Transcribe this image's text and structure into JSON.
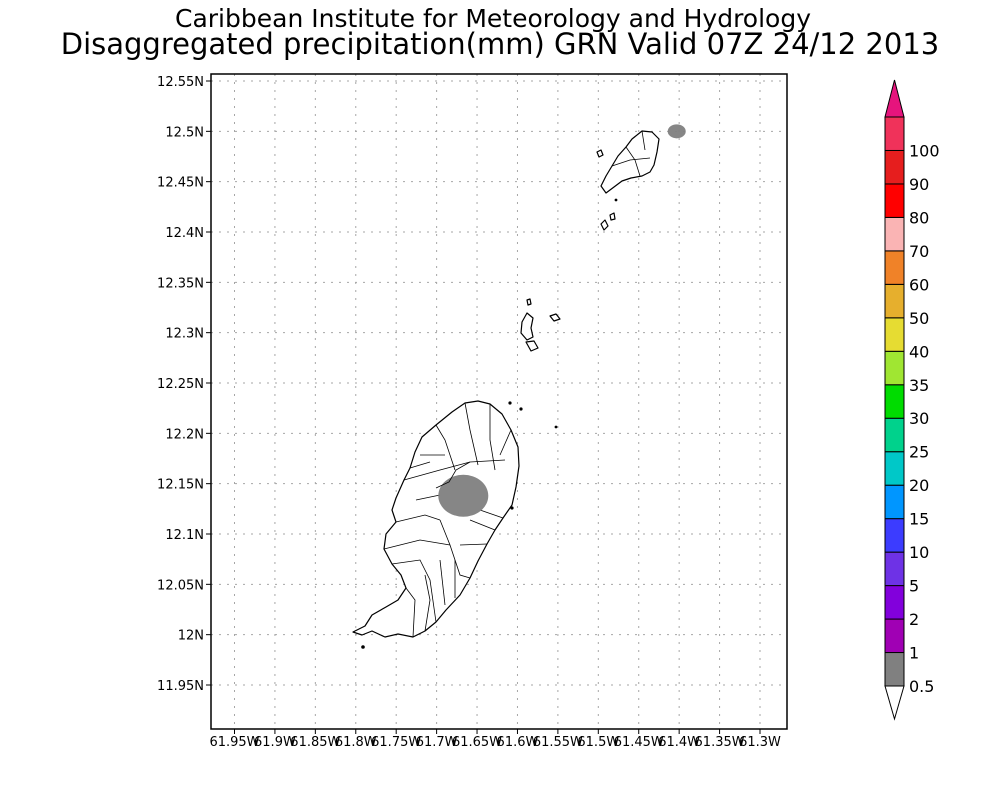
{
  "header": {
    "title_line1": "Caribbean Institute for Meteorology and Hydrology",
    "title_line2": "Disaggregated precipitation(mm) GRN Valid 07Z 24/12 2013"
  },
  "map": {
    "lon_range": [
      -61.95,
      -61.3
    ],
    "lat_range": [
      11.93,
      12.56
    ],
    "lat_ticks": [
      {
        "value": 12.55,
        "label": "12.55N"
      },
      {
        "value": 12.5,
        "label": "12.5N"
      },
      {
        "value": 12.45,
        "label": "12.45N"
      },
      {
        "value": 12.4,
        "label": "12.4N"
      },
      {
        "value": 12.35,
        "label": "12.35N"
      },
      {
        "value": 12.3,
        "label": "12.3N"
      },
      {
        "value": 12.25,
        "label": "12.25N"
      },
      {
        "value": 12.2,
        "label": "12.2N"
      },
      {
        "value": 12.15,
        "label": "12.15N"
      },
      {
        "value": 12.1,
        "label": "12.1N"
      },
      {
        "value": 12.05,
        "label": "12.05N"
      },
      {
        "value": 12.0,
        "label": "12N"
      },
      {
        "value": 11.95,
        "label": "11.95N"
      }
    ],
    "lon_ticks": [
      {
        "value": -61.95,
        "label": "61.95W"
      },
      {
        "value": -61.9,
        "label": "61.9W"
      },
      {
        "value": -61.85,
        "label": "61.85W"
      },
      {
        "value": -61.8,
        "label": "61.8W"
      },
      {
        "value": -61.75,
        "label": "61.75W"
      },
      {
        "value": -61.7,
        "label": "61.7W"
      },
      {
        "value": -61.65,
        "label": "61.65W"
      },
      {
        "value": -61.6,
        "label": "61.6W"
      },
      {
        "value": -61.55,
        "label": "61.55W"
      },
      {
        "value": -61.5,
        "label": "61.5W"
      },
      {
        "value": -61.45,
        "label": "61.45W"
      },
      {
        "value": -61.4,
        "label": "61.4W"
      },
      {
        "value": -61.35,
        "label": "61.35W"
      },
      {
        "value": -61.3,
        "label": "61.3W"
      }
    ],
    "precip_areas": [
      {
        "name": "central-grenada-precip",
        "lon": -61.667,
        "lat": 12.138,
        "value_range": "0.5-1"
      },
      {
        "name": "carriacou-ne-precip",
        "lon": -61.403,
        "lat": 12.5,
        "value_range": "0.5-1"
      }
    ]
  },
  "legend": {
    "bins": [
      {
        "label": "0.5",
        "color": "#808080"
      },
      {
        "label": "1",
        "color": "#a000b4"
      },
      {
        "label": "2",
        "color": "#8200dc"
      },
      {
        "label": "5",
        "color": "#6e32e6"
      },
      {
        "label": "10",
        "color": "#3c3cff"
      },
      {
        "label": "15",
        "color": "#0096ff"
      },
      {
        "label": "20",
        "color": "#00c8c8"
      },
      {
        "label": "25",
        "color": "#00d28c"
      },
      {
        "label": "30",
        "color": "#00dc00"
      },
      {
        "label": "35",
        "color": "#a0e632"
      },
      {
        "label": "40",
        "color": "#e6dc32"
      },
      {
        "label": "50",
        "color": "#e6af2d"
      },
      {
        "label": "60",
        "color": "#f08228"
      },
      {
        "label": "70",
        "color": "#fab4b4"
      },
      {
        "label": "80",
        "color": "#ff0000"
      },
      {
        "label": "90",
        "color": "#e61e1e"
      },
      {
        "label": "100",
        "color": "#f0325a"
      }
    ],
    "over_color": "#e6147d",
    "under_color": "#ffffff"
  }
}
